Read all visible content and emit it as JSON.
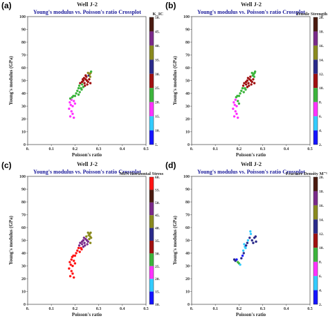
{
  "colorbar_colors": [
    "#1414ff",
    "#33ccff",
    "#ff33ff",
    "#3cb43c",
    "#a01010",
    "#2a2a8a",
    "#8a8a1e",
    "#7a2a8a",
    "#4a1a10",
    "#ff1414"
  ],
  "chart_data": [
    {
      "panel_label": "(a)",
      "well": "Well J-2",
      "title": "Young's modulus vs. Poisson's ratio Crossplot",
      "type": "scatter",
      "xlabel": "Poisson's ratio",
      "ylabel": "Young's modulus (GPa)",
      "xlim": [
        0,
        0.5
      ],
      "ylim": [
        0,
        100
      ],
      "x_ticks": [
        "0.",
        "0.1",
        "0.2",
        "0.3",
        "0.4",
        "0.5"
      ],
      "y_ticks": [
        "0",
        "10",
        "20",
        "30",
        "40",
        "50",
        "60",
        "70",
        "80",
        "90",
        "100"
      ],
      "colorbar_label": "K_IC",
      "colorbar_ticks": [
        "50.",
        "45.",
        "40.",
        "35.",
        "30.",
        "25.",
        "20.",
        "15.",
        "10.",
        "5."
      ],
      "points": [
        {
          "x": 0.18,
          "y": 22,
          "c": 2
        },
        {
          "x": 0.19,
          "y": 24,
          "c": 2
        },
        {
          "x": 0.185,
          "y": 26,
          "c": 2
        },
        {
          "x": 0.195,
          "y": 21,
          "c": 2
        },
        {
          "x": 0.175,
          "y": 28,
          "c": 2
        },
        {
          "x": 0.182,
          "y": 31,
          "c": 2
        },
        {
          "x": 0.19,
          "y": 30,
          "c": 2
        },
        {
          "x": 0.178,
          "y": 33,
          "c": 2
        },
        {
          "x": 0.185,
          "y": 35,
          "c": 2
        },
        {
          "x": 0.195,
          "y": 34,
          "c": 2
        },
        {
          "x": 0.2,
          "y": 32,
          "c": 2
        },
        {
          "x": 0.188,
          "y": 37,
          "c": 3
        },
        {
          "x": 0.193,
          "y": 38,
          "c": 3
        },
        {
          "x": 0.18,
          "y": 36,
          "c": 3
        },
        {
          "x": 0.2,
          "y": 38,
          "c": 3
        },
        {
          "x": 0.205,
          "y": 40,
          "c": 3
        },
        {
          "x": 0.21,
          "y": 42,
          "c": 3
        },
        {
          "x": 0.215,
          "y": 44,
          "c": 3
        },
        {
          "x": 0.22,
          "y": 41,
          "c": 3
        },
        {
          "x": 0.218,
          "y": 46,
          "c": 3
        },
        {
          "x": 0.225,
          "y": 44,
          "c": 3
        },
        {
          "x": 0.23,
          "y": 47,
          "c": 3
        },
        {
          "x": 0.228,
          "y": 43,
          "c": 3
        },
        {
          "x": 0.235,
          "y": 45,
          "c": 3
        },
        {
          "x": 0.215,
          "y": 39,
          "c": 3
        },
        {
          "x": 0.222,
          "y": 48,
          "c": 4
        },
        {
          "x": 0.23,
          "y": 49,
          "c": 4
        },
        {
          "x": 0.235,
          "y": 50,
          "c": 4
        },
        {
          "x": 0.24,
          "y": 48,
          "c": 4
        },
        {
          "x": 0.245,
          "y": 51,
          "c": 4
        },
        {
          "x": 0.238,
          "y": 52,
          "c": 4
        },
        {
          "x": 0.25,
          "y": 50,
          "c": 4
        },
        {
          "x": 0.255,
          "y": 49,
          "c": 4
        },
        {
          "x": 0.248,
          "y": 53,
          "c": 4
        },
        {
          "x": 0.26,
          "y": 51,
          "c": 4
        },
        {
          "x": 0.242,
          "y": 46,
          "c": 4
        },
        {
          "x": 0.252,
          "y": 47,
          "c": 4
        },
        {
          "x": 0.233,
          "y": 51,
          "c": 4
        },
        {
          "x": 0.265,
          "y": 48,
          "c": 4
        },
        {
          "x": 0.258,
          "y": 54,
          "c": 5
        },
        {
          "x": 0.262,
          "y": 55,
          "c": 6
        },
        {
          "x": 0.266,
          "y": 56,
          "c": 6
        },
        {
          "x": 0.255,
          "y": 56,
          "c": 6
        },
        {
          "x": 0.268,
          "y": 57,
          "c": 3
        },
        {
          "x": 0.264,
          "y": 53,
          "c": 6
        },
        {
          "x": 0.245,
          "y": 54,
          "c": 4
        }
      ]
    },
    {
      "panel_label": "(b)",
      "well": "Well J-2",
      "title": "Young's modulus vs. Poisson's ratio Crossplot",
      "type": "scatter",
      "xlabel": "Poisson's ratio",
      "ylabel": "Young's modulus (GPa)",
      "xlim": [
        0,
        0.5
      ],
      "ylim": [
        0,
        100
      ],
      "x_ticks": [
        "0.",
        "0.1",
        "0.2",
        "0.3",
        "0.4",
        "0.5"
      ],
      "y_ticks": [
        "0",
        "10",
        "20",
        "30",
        "40",
        "50",
        "60",
        "70",
        "80",
        "90",
        "100"
      ],
      "colorbar_label": "Tensile Strength",
      "colorbar_ticks": [
        "20.",
        "18.",
        "16.",
        "14.",
        "12.",
        "10.",
        "8.",
        "6.",
        "4.",
        "2."
      ],
      "points": [
        {
          "x": 0.18,
          "y": 22,
          "c": 2
        },
        {
          "x": 0.19,
          "y": 24,
          "c": 2
        },
        {
          "x": 0.185,
          "y": 26,
          "c": 2
        },
        {
          "x": 0.195,
          "y": 21,
          "c": 2
        },
        {
          "x": 0.175,
          "y": 28,
          "c": 2
        },
        {
          "x": 0.182,
          "y": 31,
          "c": 2
        },
        {
          "x": 0.19,
          "y": 30,
          "c": 2
        },
        {
          "x": 0.178,
          "y": 33,
          "c": 2
        },
        {
          "x": 0.185,
          "y": 35,
          "c": 2
        },
        {
          "x": 0.195,
          "y": 34,
          "c": 3
        },
        {
          "x": 0.2,
          "y": 32,
          "c": 3
        },
        {
          "x": 0.188,
          "y": 37,
          "c": 3
        },
        {
          "x": 0.193,
          "y": 38,
          "c": 3
        },
        {
          "x": 0.2,
          "y": 38,
          "c": 3
        },
        {
          "x": 0.205,
          "y": 40,
          "c": 3
        },
        {
          "x": 0.21,
          "y": 42,
          "c": 3
        },
        {
          "x": 0.215,
          "y": 44,
          "c": 3
        },
        {
          "x": 0.22,
          "y": 41,
          "c": 3
        },
        {
          "x": 0.218,
          "y": 46,
          "c": 4
        },
        {
          "x": 0.225,
          "y": 44,
          "c": 3
        },
        {
          "x": 0.23,
          "y": 47,
          "c": 4
        },
        {
          "x": 0.228,
          "y": 43,
          "c": 3
        },
        {
          "x": 0.235,
          "y": 45,
          "c": 4
        },
        {
          "x": 0.222,
          "y": 48,
          "c": 4
        },
        {
          "x": 0.23,
          "y": 49,
          "c": 4
        },
        {
          "x": 0.235,
          "y": 50,
          "c": 4
        },
        {
          "x": 0.24,
          "y": 48,
          "c": 4
        },
        {
          "x": 0.245,
          "y": 51,
          "c": 4
        },
        {
          "x": 0.238,
          "y": 52,
          "c": 4
        },
        {
          "x": 0.25,
          "y": 50,
          "c": 4
        },
        {
          "x": 0.255,
          "y": 49,
          "c": 4
        },
        {
          "x": 0.248,
          "y": 53,
          "c": 4
        },
        {
          "x": 0.26,
          "y": 51,
          "c": 4
        },
        {
          "x": 0.242,
          "y": 46,
          "c": 4
        },
        {
          "x": 0.252,
          "y": 47,
          "c": 4
        },
        {
          "x": 0.265,
          "y": 48,
          "c": 4
        },
        {
          "x": 0.258,
          "y": 54,
          "c": 3
        },
        {
          "x": 0.262,
          "y": 55,
          "c": 3
        },
        {
          "x": 0.266,
          "y": 56,
          "c": 3
        },
        {
          "x": 0.255,
          "y": 56,
          "c": 3
        },
        {
          "x": 0.268,
          "y": 57,
          "c": 3
        },
        {
          "x": 0.264,
          "y": 53,
          "c": 3
        }
      ]
    },
    {
      "panel_label": "(c)",
      "well": "Well J-2",
      "title": "Young's modulus vs. Poisson's ratio Crossplot",
      "type": "scatter",
      "xlabel": "Poisson's ratio",
      "ylabel": "Young's modulus (GPa)",
      "xlim": [
        0,
        0.5
      ],
      "ylim": [
        0,
        100
      ],
      "x_ticks": [
        "0.",
        "0.1",
        "0.2",
        "0.3",
        "0.4",
        "0.5"
      ],
      "y_ticks": [
        "0",
        "10",
        "20",
        "30",
        "40",
        "50",
        "60",
        "70",
        "80",
        "90",
        "100"
      ],
      "colorbar_label": "MIN Horizontal Stress",
      "colorbar_ticks": [
        "60.",
        "55.",
        "50.",
        "45.",
        "40.",
        "35.",
        "30.",
        "25.",
        "20.",
        "15.",
        "10."
      ],
      "points": [
        {
          "x": 0.18,
          "y": 22,
          "c": 9
        },
        {
          "x": 0.19,
          "y": 24,
          "c": 9
        },
        {
          "x": 0.185,
          "y": 26,
          "c": 9
        },
        {
          "x": 0.195,
          "y": 21,
          "c": 9
        },
        {
          "x": 0.175,
          "y": 28,
          "c": 9
        },
        {
          "x": 0.182,
          "y": 31,
          "c": 9
        },
        {
          "x": 0.19,
          "y": 30,
          "c": 9
        },
        {
          "x": 0.178,
          "y": 33,
          "c": 9
        },
        {
          "x": 0.185,
          "y": 35,
          "c": 9
        },
        {
          "x": 0.195,
          "y": 34,
          "c": 9
        },
        {
          "x": 0.2,
          "y": 32,
          "c": 9
        },
        {
          "x": 0.188,
          "y": 37,
          "c": 9
        },
        {
          "x": 0.193,
          "y": 38,
          "c": 9
        },
        {
          "x": 0.2,
          "y": 38,
          "c": 9
        },
        {
          "x": 0.205,
          "y": 40,
          "c": 9
        },
        {
          "x": 0.21,
          "y": 42,
          "c": 9
        },
        {
          "x": 0.215,
          "y": 44,
          "c": 9
        },
        {
          "x": 0.22,
          "y": 41,
          "c": 9
        },
        {
          "x": 0.218,
          "y": 46,
          "c": 7
        },
        {
          "x": 0.225,
          "y": 44,
          "c": 9
        },
        {
          "x": 0.23,
          "y": 47,
          "c": 7
        },
        {
          "x": 0.228,
          "y": 43,
          "c": 9
        },
        {
          "x": 0.235,
          "y": 45,
          "c": 7
        },
        {
          "x": 0.222,
          "y": 48,
          "c": 7
        },
        {
          "x": 0.23,
          "y": 49,
          "c": 7
        },
        {
          "x": 0.235,
          "y": 50,
          "c": 7
        },
        {
          "x": 0.24,
          "y": 48,
          "c": 7
        },
        {
          "x": 0.245,
          "y": 51,
          "c": 7
        },
        {
          "x": 0.238,
          "y": 52,
          "c": 7
        },
        {
          "x": 0.25,
          "y": 50,
          "c": 7
        },
        {
          "x": 0.255,
          "y": 49,
          "c": 7
        },
        {
          "x": 0.248,
          "y": 53,
          "c": 6
        },
        {
          "x": 0.26,
          "y": 51,
          "c": 6
        },
        {
          "x": 0.242,
          "y": 46,
          "c": 7
        },
        {
          "x": 0.252,
          "y": 47,
          "c": 7
        },
        {
          "x": 0.265,
          "y": 48,
          "c": 6
        },
        {
          "x": 0.258,
          "y": 54,
          "c": 6
        },
        {
          "x": 0.262,
          "y": 55,
          "c": 6
        },
        {
          "x": 0.266,
          "y": 56,
          "c": 6
        },
        {
          "x": 0.255,
          "y": 56,
          "c": 6
        },
        {
          "x": 0.268,
          "y": 52,
          "c": 6
        },
        {
          "x": 0.264,
          "y": 53,
          "c": 6
        }
      ]
    },
    {
      "panel_label": "(d)",
      "well": "Well J-2",
      "title": "Young's modulus vs. Poisson's ratio Crossplot",
      "type": "scatter",
      "xlabel": "Poisson's ratio",
      "ylabel": "Young's modulus (GPa)",
      "xlim": [
        0,
        0.5
      ],
      "ylim": [
        0,
        100
      ],
      "x_ticks": [
        "0.",
        "0.1",
        "0.2",
        "0.3",
        "0.4",
        "0.5"
      ],
      "y_ticks": [
        "0",
        "10",
        "20",
        "30",
        "40",
        "50",
        "60",
        "70",
        "80",
        "90",
        "100"
      ],
      "colorbar_label": "Fracture Density M⁻¹",
      "colorbar_ticks": [
        "20.",
        "18.",
        "16.",
        "14.",
        "12.",
        "10.",
        "8.",
        "6.",
        "4.",
        "2."
      ],
      "points": [
        {
          "x": 0.18,
          "y": 35,
          "c": 5
        },
        {
          "x": 0.185,
          "y": 34,
          "c": 5
        },
        {
          "x": 0.19,
          "y": 35,
          "c": 0
        },
        {
          "x": 0.195,
          "y": 33,
          "c": 3
        },
        {
          "x": 0.2,
          "y": 32,
          "c": 3
        },
        {
          "x": 0.205,
          "y": 31,
          "c": 1
        },
        {
          "x": 0.21,
          "y": 36,
          "c": 5
        },
        {
          "x": 0.215,
          "y": 38,
          "c": 0
        },
        {
          "x": 0.22,
          "y": 40,
          "c": 5
        },
        {
          "x": 0.218,
          "y": 42,
          "c": 1
        },
        {
          "x": 0.225,
          "y": 45,
          "c": 1
        },
        {
          "x": 0.222,
          "y": 47,
          "c": 1
        },
        {
          "x": 0.23,
          "y": 46,
          "c": 5
        },
        {
          "x": 0.235,
          "y": 48,
          "c": 5
        },
        {
          "x": 0.238,
          "y": 50,
          "c": 1
        },
        {
          "x": 0.245,
          "y": 52,
          "c": 5
        },
        {
          "x": 0.25,
          "y": 55,
          "c": 1
        },
        {
          "x": 0.248,
          "y": 57,
          "c": 1
        },
        {
          "x": 0.255,
          "y": 50,
          "c": 5
        },
        {
          "x": 0.26,
          "y": 48,
          "c": 5
        },
        {
          "x": 0.265,
          "y": 52,
          "c": 5
        },
        {
          "x": 0.27,
          "y": 53,
          "c": 5
        },
        {
          "x": 0.272,
          "y": 49,
          "c": 5
        },
        {
          "x": 0.228,
          "y": 44,
          "c": 1
        }
      ]
    }
  ]
}
